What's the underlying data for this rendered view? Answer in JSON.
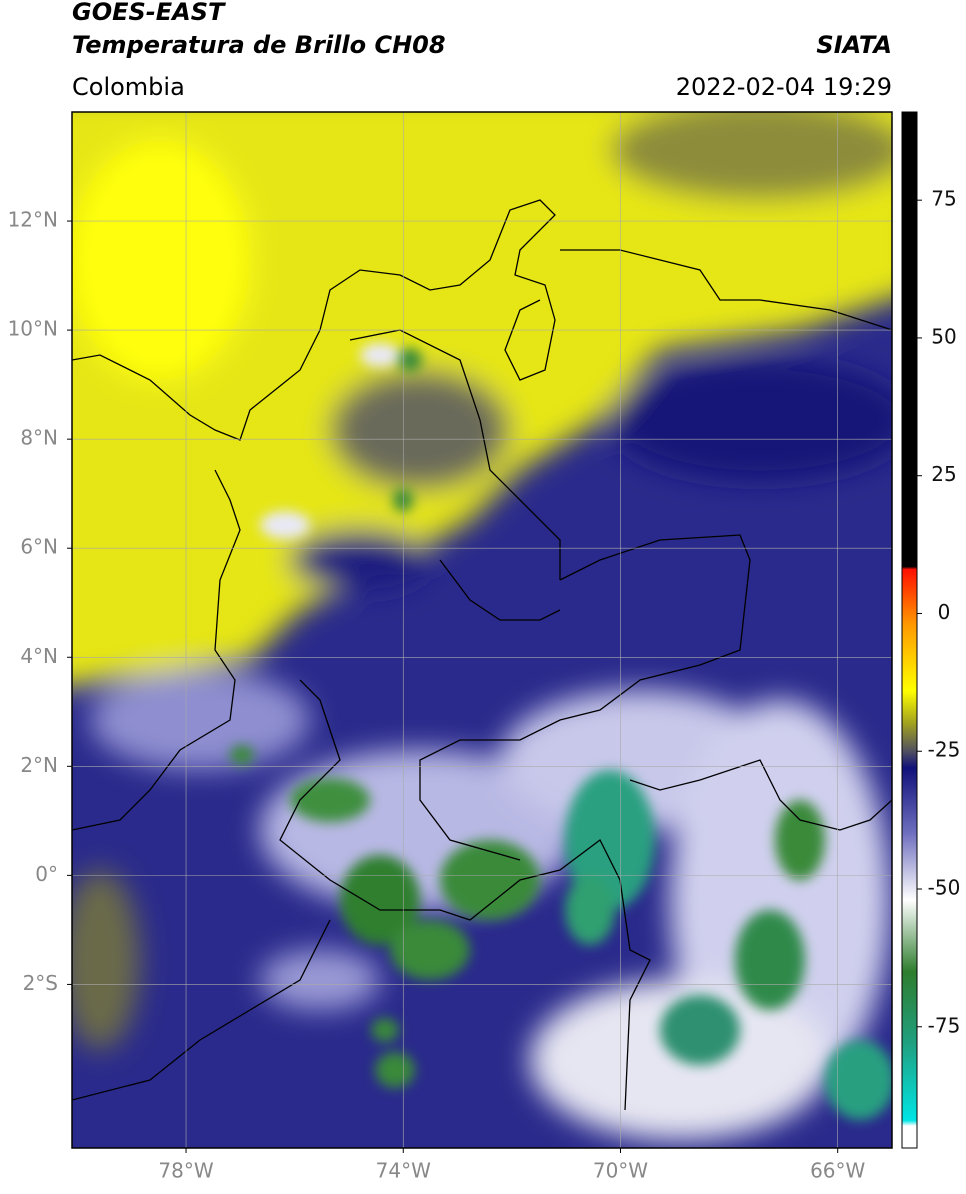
{
  "header": {
    "title": "GOES-EAST",
    "subtitle": "Temperatura de Brillo CH08",
    "source": "SIATA",
    "region": "Colombia",
    "datetime": "2022-02-04 19:29"
  },
  "map": {
    "xlim": [
      -80.1,
      -65
    ],
    "ylim": [
      -5,
      14
    ],
    "xticks": [
      {
        "value": -78,
        "label": "78°W"
      },
      {
        "value": -74,
        "label": "74°W"
      },
      {
        "value": -70,
        "label": "70°W"
      },
      {
        "value": -66,
        "label": "66°W"
      }
    ],
    "yticks": [
      {
        "value": 12,
        "label": "12°N"
      },
      {
        "value": 10,
        "label": "10°N"
      },
      {
        "value": 8,
        "label": "8°N"
      },
      {
        "value": 6,
        "label": "6°N"
      },
      {
        "value": 4,
        "label": "4°N"
      },
      {
        "value": 2,
        "label": "2°N"
      },
      {
        "value": 0,
        "label": "0°"
      },
      {
        "value": -2,
        "label": "2°S"
      }
    ],
    "grid": true
  },
  "colorbar": {
    "lim": [
      -97,
      91
    ],
    "ticks": [
      75,
      50,
      25,
      0,
      -25,
      -50,
      -75
    ],
    "stops": [
      {
        "value": -97,
        "color": "#ffffff"
      },
      {
        "value": -93,
        "color": "#ffffff"
      },
      {
        "value": -92,
        "color": "#00e5e5"
      },
      {
        "value": -78,
        "color": "#20a080"
      },
      {
        "value": -65,
        "color": "#2e7d2e"
      },
      {
        "value": -52,
        "color": "#ffffff"
      },
      {
        "value": -40,
        "color": "#7070c0"
      },
      {
        "value": -28,
        "color": "#10107a"
      },
      {
        "value": -25,
        "color": "#505060"
      },
      {
        "value": -20,
        "color": "#a0a020"
      },
      {
        "value": -14,
        "color": "#ffff00"
      },
      {
        "value": -2,
        "color": "#ff9900"
      },
      {
        "value": 8,
        "color": "#ff1000"
      },
      {
        "value": 8.5,
        "color": "#000000"
      },
      {
        "value": 91,
        "color": "#000000"
      }
    ]
  }
}
